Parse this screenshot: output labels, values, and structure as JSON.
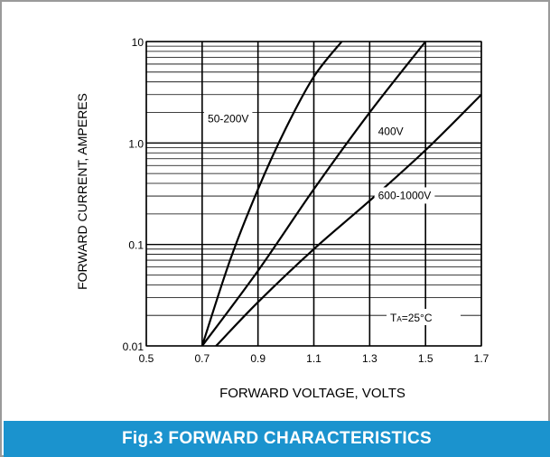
{
  "caption": "Fig.3 FORWARD CHARACTERISTICS",
  "chart_data": {
    "type": "line",
    "title": "",
    "xlabel": "FORWARD VOLTAGE, VOLTS",
    "ylabel": "FORWARD CURRENT, AMPERES",
    "xlim": [
      0.5,
      1.7
    ],
    "ylim": [
      0.01,
      10
    ],
    "yscale": "log",
    "grid": true,
    "x_ticks": [
      "0.5",
      "0.7",
      "0.9",
      "1.1",
      "1.3",
      "1.5",
      "1.7"
    ],
    "y_ticks": [
      "0.01",
      "0.1",
      "1.0",
      "10"
    ],
    "condition_label_prefix": "T",
    "condition_label_sub": "A",
    "condition_label_suffix": "=25°C",
    "series": [
      {
        "name": "50-200V",
        "x": [
          0.7,
          0.8,
          0.9,
          1.0,
          1.1,
          1.2
        ],
        "y": [
          0.01,
          0.07,
          0.35,
          1.4,
          4.5,
          10
        ]
      },
      {
        "name": "400V",
        "x": [
          0.7,
          0.9,
          1.1,
          1.3,
          1.5
        ],
        "y": [
          0.01,
          0.055,
          0.35,
          2.0,
          10
        ]
      },
      {
        "name": "600-1000V",
        "x": [
          0.75,
          0.9,
          1.1,
          1.3,
          1.5,
          1.7
        ],
        "y": [
          0.01,
          0.027,
          0.09,
          0.27,
          0.85,
          3.0
        ]
      }
    ]
  }
}
